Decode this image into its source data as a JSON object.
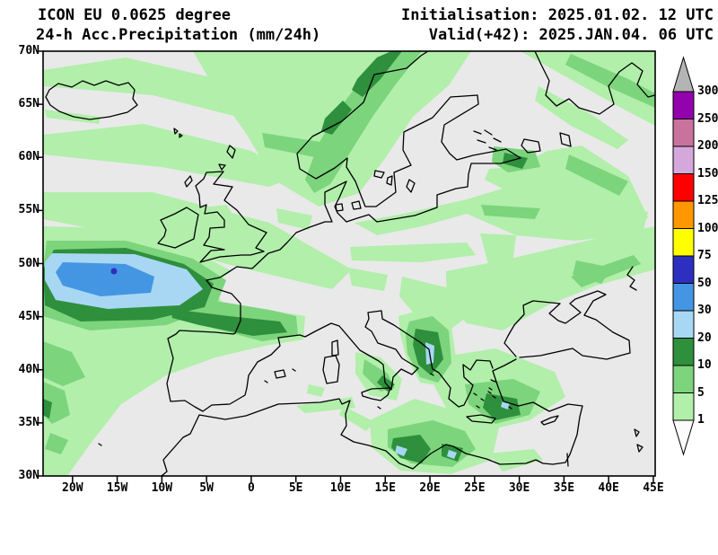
{
  "header": {
    "model": "ICON EU 0.0625 degree",
    "product": "24-h Acc.Precipitation (mm/24h)",
    "initialisation": "Initialisation: 2025.01.02. 12 UTC",
    "valid": "Valid(+42): 2025.JAN.04. 06 UTC"
  },
  "axes": {
    "lat_labels": [
      "70N",
      "65N",
      "60N",
      "55N",
      "50N",
      "45N",
      "40N",
      "35N",
      "30N"
    ],
    "lon_labels": [
      "20W",
      "15W",
      "10W",
      "5W",
      "0",
      "5E",
      "10E",
      "15E",
      "20E",
      "25E",
      "30E",
      "35E",
      "40E",
      "45E"
    ]
  },
  "colorbar": {
    "labels_top_to_bottom": [
      "300",
      "250",
      "200",
      "150",
      "125",
      "100",
      "75",
      "50",
      "30",
      "20",
      "10",
      "5",
      "1"
    ],
    "segments_top_to_bottom": [
      "purple",
      "mauve",
      "lilac",
      "red",
      "orange",
      "yellow",
      "blue_dark",
      "blue_mid",
      "blue_light",
      "green_dark",
      "green_mid",
      "green_light"
    ]
  },
  "palette": {
    "map_bg": "#e9e9e9",
    "frame": "#000000",
    "coastline": "#000000",
    "green_light": "#b1efaa",
    "green_mid": "#7cd47c",
    "green_dark": "#2e8f3c",
    "blue_light": "#a8d7f4",
    "blue_mid": "#4496e2",
    "blue_dark": "#2c2fc0",
    "yellow": "#ffff00",
    "orange": "#ff9800",
    "red": "#ff0000",
    "lilac": "#d5a8dc",
    "mauve": "#c9729e",
    "purple": "#9203ad",
    "gray_arrow": "#b4b4b4",
    "white_arrow": "#fbfbfb"
  }
}
